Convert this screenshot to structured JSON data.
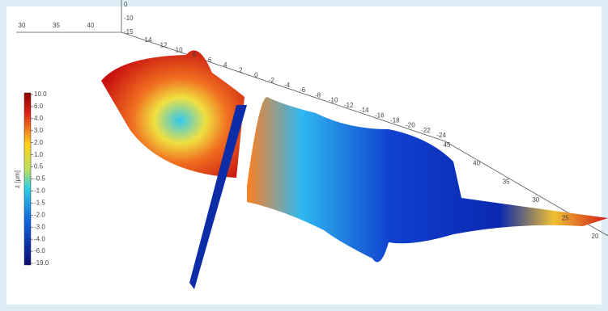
{
  "chart_data": {
    "type": "surface3d",
    "colorbar": {
      "label": "z [µm]",
      "ticks": [
        {
          "value": 10,
          "label": "10.0"
        },
        {
          "value": 6,
          "label": "6.0"
        },
        {
          "value": 4,
          "label": "4.0"
        },
        {
          "value": 3,
          "label": "3.0"
        },
        {
          "value": 2,
          "label": "2.0"
        },
        {
          "value": 1,
          "label": "1.0"
        },
        0.5,
        -0.5,
        {
          "value": -1,
          "label": "-1.0"
        },
        -1.5,
        {
          "value": -2,
          "label": "-2.0"
        },
        {
          "value": -3,
          "label": "-3.0"
        },
        {
          "value": -4,
          "label": "-4.0"
        },
        {
          "value": -6,
          "label": "-6.0"
        },
        {
          "value": -19,
          "label": "-19.0"
        }
      ]
    },
    "xticks": [
      30,
      35,
      40
    ],
    "zticks": [
      0,
      -10,
      -15
    ],
    "yticks": [
      14,
      12,
      10,
      8,
      6,
      4,
      2,
      0,
      -2,
      -4,
      -6,
      -8,
      -10,
      -12,
      -14,
      -16,
      -18,
      -20,
      -22,
      -24
    ],
    "x2ticks": [
      45,
      40,
      35,
      30,
      25,
      20
    ]
  }
}
